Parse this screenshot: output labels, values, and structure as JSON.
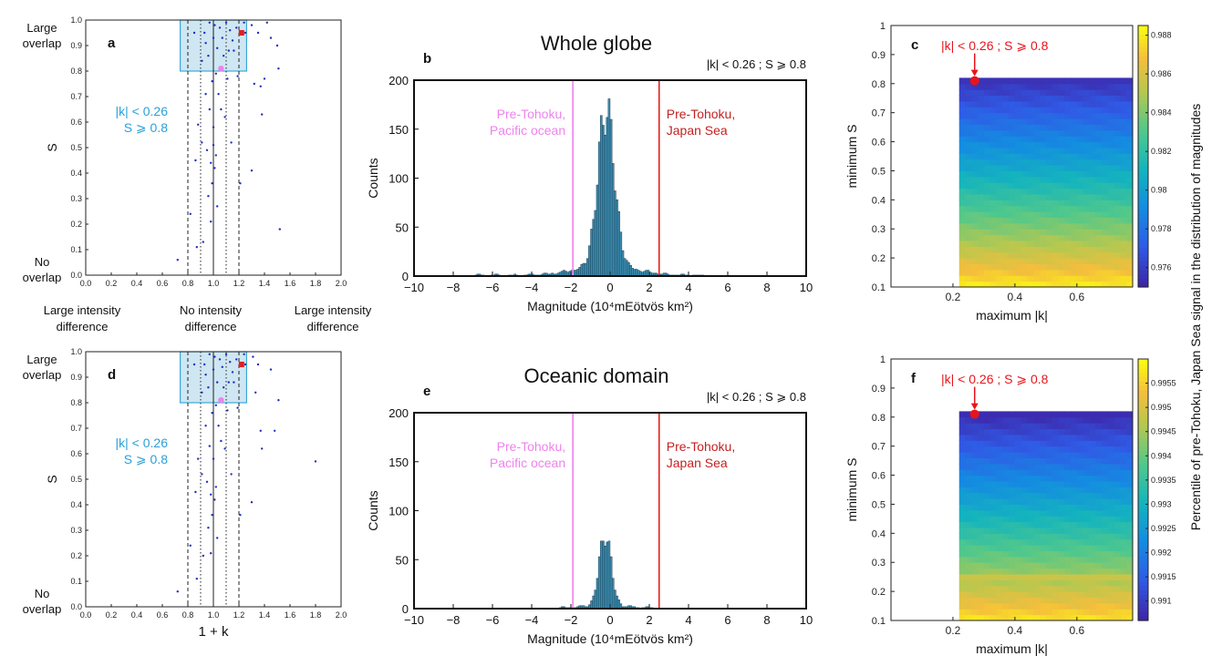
{
  "colors": {
    "box_fill": "#cfe6f3",
    "box_edge": "#3aa9d8",
    "scatter_dot": "#1f2fbf",
    "pacific": "#ee82ee",
    "japan_sea": "#e02020",
    "hist_fill": "#3c8fb4",
    "annot_blue": "#2aa0d8",
    "annot_red": "#e8141c"
  },
  "shared": {
    "scatter_left_labels": {
      "large_overlap": [
        "Large",
        "overlap"
      ],
      "no_overlap": [
        "No",
        "overlap"
      ],
      "s_label": "S"
    },
    "scatter_bottom_labels": {
      "left": [
        "Large intensity",
        "difference"
      ],
      "mid": [
        "No intensity",
        "difference"
      ],
      "right": [
        "Large intensity",
        "difference"
      ]
    },
    "scatter_criterion": [
      "|k| < 0.26",
      "S ⩾ 0.8"
    ],
    "hist_criterion": "|k| < 0.26 ; S ⩾ 0.8",
    "hist_pacific_label": [
      "Pre-Tohoku,",
      "Pacific ocean"
    ],
    "hist_japan_label": [
      "Pre-Tohoku,",
      "Japan Sea"
    ],
    "hist_ylabel": "Counts",
    "hist_xlabel": "Magnitude (10⁴mEötvös km²)",
    "heat_xlabel": "maximum |k|",
    "heat_ylabel": "minimum S",
    "heat_annotation": "|k| < 0.26 ; S ⩾ 0.8",
    "colorbar_label": "Percentile of pre-Tohoku, Japan Sea signal in the distribution of magnitudes"
  },
  "chart_data": [
    {
      "panel": "a",
      "type": "scatter",
      "xlabel": "",
      "ylabel": "S",
      "xlim": [
        0,
        2
      ],
      "ylim": [
        0,
        1
      ],
      "xticks": [
        "0.0",
        "0.2",
        "0.4",
        "0.6",
        "0.8",
        "1.0",
        "1.2",
        "1.4",
        "1.6",
        "1.8",
        "2.0"
      ],
      "yticks": [
        "0.0",
        "0.1",
        "0.2",
        "0.3",
        "0.4",
        "0.5",
        "0.6",
        "0.7",
        "0.8",
        "0.9",
        "1.0"
      ],
      "box": {
        "x": [
          0.74,
          1.26
        ],
        "y": [
          0.8,
          1.0
        ]
      },
      "vlines_dashed": [
        0.8,
        1.2
      ],
      "vlines_dotted": [
        0.9,
        1.1
      ],
      "vline_solid": 1.0,
      "japan_sea_point": [
        1.22,
        0.95
      ],
      "pacific_point": [
        1.06,
        0.81
      ],
      "points": [
        [
          0.72,
          0.06
        ],
        [
          0.85,
          0.95
        ],
        [
          0.88,
          0.59
        ],
        [
          0.92,
          0.13
        ],
        [
          0.97,
          0.65
        ],
        [
          1.01,
          0.98
        ],
        [
          1.03,
          0.89
        ],
        [
          1.05,
          0.97
        ],
        [
          1.07,
          0.93
        ],
        [
          1.1,
          0.99
        ],
        [
          1.13,
          0.96
        ],
        [
          1.16,
          0.88
        ],
        [
          1.25,
          0.95
        ],
        [
          1.3,
          0.98
        ],
        [
          1.32,
          0.75
        ],
        [
          1.35,
          0.95
        ],
        [
          1.42,
          0.99
        ],
        [
          1.45,
          0.93
        ],
        [
          1.5,
          0.9
        ],
        [
          1.51,
          0.81
        ],
        [
          1.37,
          0.74
        ],
        [
          1.4,
          0.77
        ],
        [
          1.3,
          0.41
        ],
        [
          1.52,
          0.18
        ],
        [
          1.38,
          0.63
        ],
        [
          1.21,
          0.36
        ],
        [
          0.98,
          0.44
        ],
        [
          0.99,
          0.76
        ],
        [
          0.96,
          0.86
        ],
        [
          0.94,
          0.91
        ],
        [
          0.93,
          0.95
        ],
        [
          1.0,
          0.93
        ],
        [
          1.02,
          0.79
        ],
        [
          1.04,
          0.71
        ],
        [
          0.91,
          0.84
        ],
        [
          0.97,
          0.99
        ],
        [
          1.08,
          0.86
        ],
        [
          1.15,
          0.92
        ],
        [
          1.18,
          0.97
        ],
        [
          1.11,
          0.77
        ],
        [
          0.95,
          0.49
        ],
        [
          0.99,
          0.36
        ],
        [
          1.01,
          0.42
        ],
        [
          1.0,
          0.58
        ],
        [
          1.06,
          0.65
        ],
        [
          0.86,
          0.45
        ],
        [
          0.82,
          0.24
        ],
        [
          0.87,
          0.11
        ],
        [
          1.14,
          0.52
        ],
        [
          1.19,
          0.78
        ],
        [
          1.24,
          0.99
        ],
        [
          0.94,
          0.71
        ],
        [
          0.98,
          0.21
        ],
        [
          1.03,
          0.27
        ],
        [
          0.91,
          0.52
        ],
        [
          1.09,
          0.62
        ],
        [
          1.02,
          0.47
        ],
        [
          0.96,
          0.31
        ],
        [
          1.12,
          0.88
        ],
        [
          1.0,
          0.51
        ]
      ]
    },
    {
      "panel": "b",
      "type": "bar",
      "title": "Whole globe",
      "xlabel": "Magnitude (10⁴mEötvös km²)",
      "ylabel": "Counts",
      "xlim": [
        -10,
        10
      ],
      "ylim": [
        0,
        200
      ],
      "xticks": [
        "−10",
        "−8",
        "−6",
        "−4",
        "−2",
        "0",
        "2",
        "4",
        "6",
        "8",
        "10"
      ],
      "yticks": [
        "0",
        "50",
        "100",
        "150",
        "200"
      ],
      "pacific_line": -1.9,
      "japan_sea_line": 2.5,
      "bin_width": 0.1,
      "hist_mu": -0.2,
      "hist_sigma": 0.42,
      "hist_peak": 160,
      "hist_tail_peak": 10,
      "hist_tail_sigma": 1.5,
      "hist_tail_extent": [
        -7,
        5
      ]
    },
    {
      "panel": "c",
      "type": "heatmap",
      "xlabel": "maximum |k|",
      "ylabel": "minimum S",
      "xlim": [
        0,
        0.78
      ],
      "ylim": [
        0.1,
        1.0
      ],
      "xticks": [
        "0.2",
        "0.4",
        "0.6"
      ],
      "yticks": [
        "0.1",
        "0.2",
        "0.3",
        "0.4",
        "0.5",
        "0.6",
        "0.7",
        "0.8",
        "0.9",
        "1"
      ],
      "data_x": [
        0.22,
        0.78
      ],
      "data_y": [
        0.1,
        0.82
      ],
      "marker": [
        0.27,
        0.81
      ],
      "colorbar_ticks": [
        "0.976",
        "0.978",
        "0.98",
        "0.982",
        "0.984",
        "0.986",
        "0.988"
      ],
      "colorbar_range": [
        0.975,
        0.9885
      ],
      "color_low_rows": 1,
      "value_top": 0.9755,
      "value_bottom": 0.988
    },
    {
      "panel": "d",
      "type": "scatter",
      "xlabel": "1 + k",
      "ylabel": "S",
      "xlim": [
        0,
        2
      ],
      "ylim": [
        0,
        1
      ],
      "xticks": [
        "0.0",
        "0.2",
        "0.4",
        "0.6",
        "0.8",
        "1.0",
        "1.2",
        "1.4",
        "1.6",
        "1.8",
        "2.0"
      ],
      "yticks": [
        "0.0",
        "0.1",
        "0.2",
        "0.3",
        "0.4",
        "0.5",
        "0.6",
        "0.7",
        "0.8",
        "0.9",
        "1.0"
      ],
      "box": {
        "x": [
          0.74,
          1.26
        ],
        "y": [
          0.8,
          1.0
        ]
      },
      "vlines_dashed": [
        0.8,
        1.2
      ],
      "vlines_dotted": [
        0.9,
        1.1
      ],
      "vline_solid": 1.0,
      "japan_sea_point": [
        1.22,
        0.95
      ],
      "pacific_point": [
        1.06,
        0.81
      ],
      "points": [
        [
          0.72,
          0.06
        ],
        [
          0.85,
          0.95
        ],
        [
          0.88,
          0.58
        ],
        [
          0.92,
          0.2
        ],
        [
          0.97,
          0.63
        ],
        [
          1.01,
          0.98
        ],
        [
          1.03,
          0.88
        ],
        [
          1.05,
          0.97
        ],
        [
          1.07,
          0.94
        ],
        [
          1.1,
          0.99
        ],
        [
          1.13,
          0.96
        ],
        [
          1.16,
          0.88
        ],
        [
          1.25,
          0.95
        ],
        [
          1.31,
          0.98
        ],
        [
          1.33,
          0.84
        ],
        [
          1.35,
          0.95
        ],
        [
          1.45,
          0.93
        ],
        [
          1.51,
          0.81
        ],
        [
          1.37,
          0.69
        ],
        [
          1.48,
          0.69
        ],
        [
          1.3,
          0.41
        ],
        [
          1.8,
          0.57
        ],
        [
          1.38,
          0.62
        ],
        [
          1.21,
          0.36
        ],
        [
          0.98,
          0.44
        ],
        [
          0.99,
          0.76
        ],
        [
          0.96,
          0.86
        ],
        [
          0.94,
          0.91
        ],
        [
          0.93,
          0.95
        ],
        [
          1.0,
          0.93
        ],
        [
          1.02,
          0.79
        ],
        [
          1.04,
          0.71
        ],
        [
          0.91,
          0.84
        ],
        [
          0.97,
          0.99
        ],
        [
          1.08,
          0.86
        ],
        [
          1.15,
          0.92
        ],
        [
          1.18,
          0.97
        ],
        [
          1.11,
          0.77
        ],
        [
          0.95,
          0.49
        ],
        [
          0.99,
          0.36
        ],
        [
          1.01,
          0.42
        ],
        [
          1.0,
          0.58
        ],
        [
          1.06,
          0.65
        ],
        [
          0.86,
          0.45
        ],
        [
          0.82,
          0.24
        ],
        [
          0.87,
          0.11
        ],
        [
          1.14,
          0.52
        ],
        [
          1.19,
          0.78
        ],
        [
          1.24,
          0.99
        ],
        [
          0.94,
          0.71
        ],
        [
          0.98,
          0.21
        ],
        [
          1.03,
          0.27
        ],
        [
          0.91,
          0.52
        ],
        [
          1.09,
          0.62
        ],
        [
          1.02,
          0.47
        ],
        [
          0.96,
          0.31
        ],
        [
          1.12,
          0.88
        ]
      ]
    },
    {
      "panel": "e",
      "type": "bar",
      "title": "Oceanic domain",
      "xlabel": "Magnitude (10⁴mEötvös km²)",
      "ylabel": "Counts",
      "xlim": [
        -10,
        10
      ],
      "ylim": [
        0,
        200
      ],
      "xticks": [
        "−10",
        "−8",
        "−6",
        "−4",
        "−2",
        "0",
        "2",
        "4",
        "6",
        "8",
        "10"
      ],
      "yticks": [
        "0",
        "50",
        "100",
        "150",
        "200"
      ],
      "pacific_line": -1.9,
      "japan_sea_line": 2.5,
      "bin_width": 0.1,
      "hist_mu": -0.25,
      "hist_sigma": 0.3,
      "hist_peak": 72,
      "hist_tail_peak": 3,
      "hist_tail_sigma": 0.9,
      "hist_tail_extent": [
        -3,
        2.5
      ]
    },
    {
      "panel": "f",
      "type": "heatmap",
      "xlabel": "maximum |k|",
      "ylabel": "minimum S",
      "xlim": [
        0,
        0.78
      ],
      "ylim": [
        0.1,
        1.0
      ],
      "xticks": [
        "0.2",
        "0.4",
        "0.6"
      ],
      "yticks": [
        "0.1",
        "0.2",
        "0.3",
        "0.4",
        "0.5",
        "0.6",
        "0.7",
        "0.8",
        "0.9",
        "1"
      ],
      "data_x": [
        0.22,
        0.78
      ],
      "data_y": [
        0.1,
        0.82
      ],
      "marker": [
        0.27,
        0.81
      ],
      "colorbar_ticks": [
        "0.991",
        "0.9915",
        "0.992",
        "0.9925",
        "0.993",
        "0.9935",
        "0.994",
        "0.9945",
        "0.995",
        "0.9955"
      ],
      "colorbar_range": [
        0.9906,
        0.996
      ],
      "color_low_rows": 1,
      "value_top": 0.9907,
      "value_bottom": 0.9957,
      "band_rows": [
        0.25
      ]
    }
  ]
}
